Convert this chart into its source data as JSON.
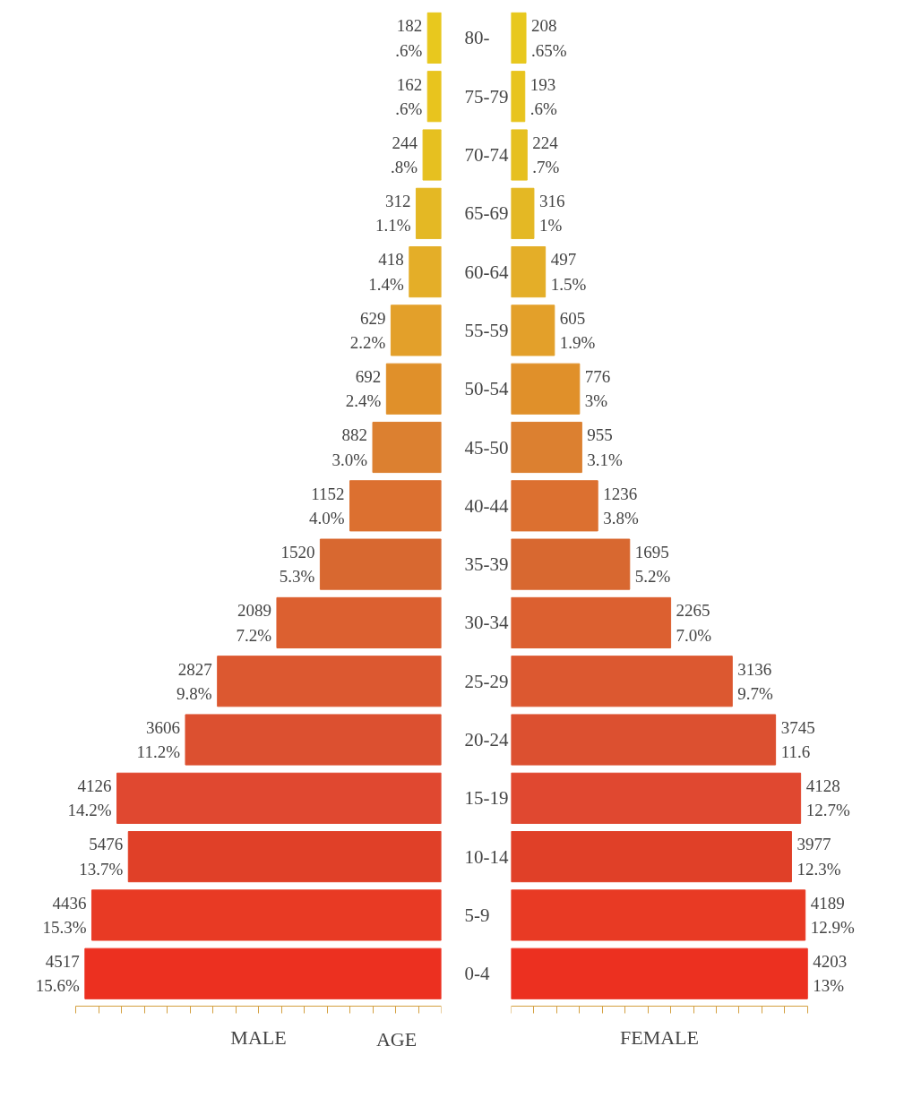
{
  "chart_data": [
    {
      "type": "bar",
      "orientation": "horizontal",
      "xlabel": "MALE",
      "annotations": [
        "AGE"
      ],
      "tick_labels": "y",
      "grid": false,
      "categories": [
        "80-",
        "75-79",
        "70-74",
        "65-69",
        "60-64",
        "55-59",
        "50-54",
        "45-50",
        "40-44",
        "35-39",
        "30-34",
        "25-29",
        "20-24",
        "15-19",
        "10-14",
        "5-9",
        "0-4"
      ],
      "values": [
        0.6,
        0.6,
        0.8,
        1.1,
        1.4,
        2.2,
        2.4,
        3.0,
        4.0,
        5.3,
        7.2,
        9.8,
        11.2,
        14.2,
        13.7,
        15.3,
        15.6
      ],
      "value_labels": [
        "182\n.6%",
        "162\n.6%",
        "244\n.8%",
        "312\n1.1%",
        "418\n1.4%",
        "629\n2.2%",
        "692\n2.4%",
        "882\n3.0%",
        "1152\n4.0%",
        "1520\n5.3%",
        "2089\n7.2%",
        "2827\n9.8%",
        "3606\n11.2%",
        "4126\n14.2%",
        "5476\n13.7%",
        "4436\n15.3%",
        "4517\n15.6%"
      ],
      "colors": [
        "#e8c81e",
        "#e8c41e",
        "#e6c020",
        "#e4b824",
        "#e4ae28",
        "#e3a02a",
        "#e0902a",
        "#dc8030",
        "#dc7030",
        "#d86830",
        "#dc6030",
        "#dc5830",
        "#dc5030",
        "#e04830",
        "#e04028",
        "#e83a24",
        "#ec3020"
      ],
      "xlim": [
        16,
        0
      ],
      "xticks": [
        {
          "value": 0,
          "label": null
        },
        {
          "value": 1,
          "label": null
        },
        {
          "value": 2,
          "label": null
        },
        {
          "value": 3,
          "label": null
        },
        {
          "value": 4,
          "label": null
        },
        {
          "value": 5,
          "label": null
        },
        {
          "value": 6,
          "label": null
        },
        {
          "value": 7,
          "label": null
        },
        {
          "value": 8,
          "label": null
        },
        {
          "value": 9,
          "label": null
        },
        {
          "value": 10,
          "label": null
        },
        {
          "value": 11,
          "label": null
        },
        {
          "value": 12,
          "label": null
        },
        {
          "value": 13,
          "label": null
        },
        {
          "value": 14,
          "label": null
        },
        {
          "value": 15,
          "label": null
        },
        {
          "value": 16,
          "label": null
        }
      ]
    },
    {
      "type": "bar",
      "orientation": "horizontal",
      "xlabel": "FEMALE",
      "tick_labels": false,
      "grid": false,
      "values": [
        0.65,
        0.6,
        0.7,
        1,
        1.5,
        1.9,
        3,
        3.1,
        3.8,
        5.2,
        7.0,
        9.7,
        11.6,
        12.7,
        12.3,
        12.9,
        13
      ],
      "value_labels": [
        "208\n.65%",
        "193\n.6%",
        "224\n.7%",
        "316\n1%",
        "497\n1.5%",
        "605\n1.9%",
        "776\n3%",
        "955\n3.1%",
        "1236\n3.8%",
        "1695\n5.2%",
        "2265\n7.0%",
        "3136\n9.7%",
        "3745\n11.6",
        "4128\n12.7%",
        "3977\n12.3%",
        "4189\n12.9%",
        "4203\n13%"
      ],
      "colors": [
        "#e8c81e",
        "#e8c41e",
        "#e6c020",
        "#e4b824",
        "#e4ae28",
        "#e3a02a",
        "#e0902a",
        "#dc8030",
        "#dc7030",
        "#d86830",
        "#dc6030",
        "#dc5830",
        "#dc5030",
        "#e04830",
        "#e04028",
        "#e83a24",
        "#ec3020"
      ],
      "xlim": [
        0,
        13
      ],
      "xticks": [
        {
          "value": 0,
          "label": null
        },
        {
          "value": 1,
          "label": null
        },
        {
          "value": 2,
          "label": null
        },
        {
          "value": 3,
          "label": null
        },
        {
          "value": 4,
          "label": null
        },
        {
          "value": 5,
          "label": null
        },
        {
          "value": 6,
          "label": null
        },
        {
          "value": 7,
          "label": null
        },
        {
          "value": 8,
          "label": null
        },
        {
          "value": 9,
          "label": null
        },
        {
          "value": 10,
          "label": null
        },
        {
          "value": 11,
          "label": null
        },
        {
          "value": 12,
          "label": null
        },
        {
          "value": 13,
          "label": null
        }
      ]
    }
  ]
}
